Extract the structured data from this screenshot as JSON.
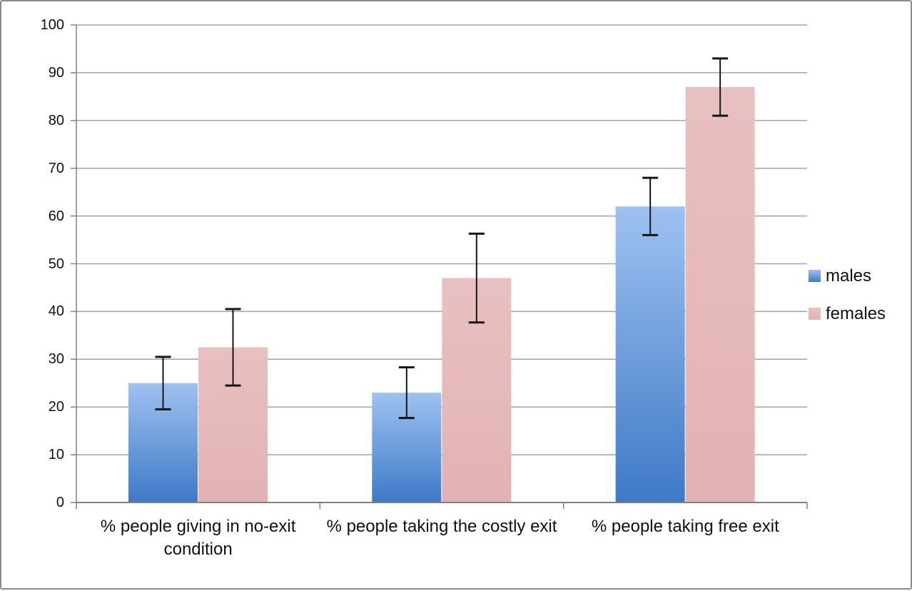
{
  "window": {
    "background_color": "#ffffff",
    "border_color": "#8a8a8a"
  },
  "chart_data": {
    "type": "bar",
    "title": "",
    "xlabel": "",
    "ylabel": "",
    "categories": [
      "% people giving in no-exit condition",
      "% people taking the costly exit",
      "% people taking free exit"
    ],
    "series": [
      {
        "name": "males",
        "values": [
          25,
          23,
          62
        ],
        "error_plus": [
          5.5,
          5.3,
          6
        ],
        "error_minus": [
          5.5,
          5.3,
          6
        ],
        "color_top": "#9ec2f0",
        "color_bottom": "#3e79c7"
      },
      {
        "name": "females",
        "values": [
          32.5,
          47,
          87
        ],
        "error_plus": [
          8,
          9.3,
          6
        ],
        "error_minus": [
          8,
          9.3,
          6
        ],
        "color_top": "#e9c0c1",
        "color_bottom": "#e2b2b4"
      }
    ],
    "ylim": [
      0,
      100
    ],
    "yticks": [
      0,
      10,
      20,
      30,
      40,
      50,
      60,
      70,
      80,
      90,
      100
    ],
    "grid": true,
    "legend_position": "right",
    "gridline_color": "#a3a3a3",
    "axis_color": "#808080",
    "error_bar_color": "#161616"
  }
}
